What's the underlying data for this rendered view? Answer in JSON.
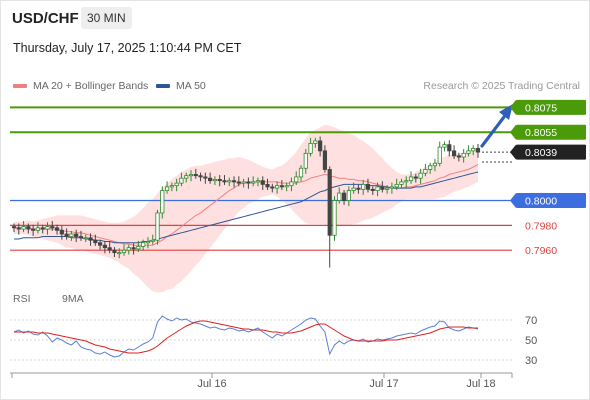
{
  "header": {
    "symbol": "USD/CHF",
    "timeframe": "30 MIN",
    "timestamp": "Thursday, July 17, 2025 1:10:44 PM CET",
    "credit": "Research © 2025 Trading Central"
  },
  "legend": {
    "ma20": {
      "label": "MA 20 + Bollinger Bands",
      "color": "#f08080"
    },
    "ma50": {
      "label": "MA 50",
      "color": "#2f5597"
    }
  },
  "rsi_legend": {
    "rsi": {
      "label": "RSI",
      "color": "#5b7fd6"
    },
    "ma9": {
      "label": "9MA",
      "color": "#e02020"
    }
  },
  "chart_data": [
    {
      "type": "candlestick",
      "title": "USD/CHF",
      "x_ticks": [
        "Jul 16",
        "Jul 17",
        "Jul 18"
      ],
      "ylim": [
        0.794,
        0.8085
      ],
      "levels": [
        {
          "value": 0.8075,
          "label": "0.8075",
          "kind": "resistance",
          "color": "#4a9a0a"
        },
        {
          "value": 0.8055,
          "label": "0.8055",
          "kind": "resistance",
          "color": "#4a9a0a"
        },
        {
          "value": 0.8039,
          "label": "0.8039",
          "kind": "last-price",
          "color": "#222222"
        },
        {
          "value": 0.8,
          "label": "0.8000",
          "kind": "pivot",
          "color": "#3d6ee0"
        },
        {
          "value": 0.798,
          "label": "0.7980",
          "kind": "support",
          "color": "#e04040"
        },
        {
          "value": 0.796,
          "label": "0.7960",
          "kind": "support",
          "color": "#e04040"
        }
      ],
      "close": [
        0.7978,
        0.7977,
        0.7979,
        0.7977,
        0.7976,
        0.7978,
        0.7977,
        0.7979,
        0.7978,
        0.7976,
        0.7973,
        0.7971,
        0.7973,
        0.7971,
        0.797,
        0.797,
        0.7968,
        0.7966,
        0.7964,
        0.7962,
        0.796,
        0.7958,
        0.7958,
        0.796,
        0.7962,
        0.7961,
        0.7963,
        0.7966,
        0.7967,
        0.7968,
        0.799,
        0.8008,
        0.8011,
        0.8012,
        0.8014,
        0.8018,
        0.802,
        0.8021,
        0.802,
        0.8019,
        0.8018,
        0.8016,
        0.8017,
        0.8016,
        0.8015,
        0.8016,
        0.8015,
        0.8014,
        0.8015,
        0.8014,
        0.8015,
        0.8016,
        0.8013,
        0.8011,
        0.801,
        0.8012,
        0.8011,
        0.8012,
        0.8015,
        0.8019,
        0.8026,
        0.8038,
        0.8046,
        0.8048,
        0.804,
        0.8025,
        0.7972,
        0.8,
        0.8006,
        0.8,
        0.8008,
        0.801,
        0.8009,
        0.8013,
        0.8009,
        0.8008,
        0.8011,
        0.8009,
        0.801,
        0.8011,
        0.8013,
        0.8015,
        0.8016,
        0.8019,
        0.8018,
        0.8022,
        0.8025,
        0.8028,
        0.803,
        0.8043,
        0.8045,
        0.804,
        0.8036,
        0.8035,
        0.8038,
        0.804,
        0.8042,
        0.8039
      ],
      "ma20": [
        0.7978,
        0.7978,
        0.7978,
        0.7978,
        0.7977,
        0.7977,
        0.7977,
        0.7977,
        0.7977,
        0.7977,
        0.7976,
        0.7975,
        0.7975,
        0.7974,
        0.7974,
        0.7973,
        0.7972,
        0.7971,
        0.797,
        0.7969,
        0.7968,
        0.7967,
        0.7966,
        0.7965,
        0.7965,
        0.7964,
        0.7964,
        0.7964,
        0.7964,
        0.7964,
        0.7966,
        0.7968,
        0.7971,
        0.7973,
        0.7976,
        0.7979,
        0.7982,
        0.7985,
        0.7988,
        0.799,
        0.7993,
        0.7996,
        0.7999,
        0.8002,
        0.8005,
        0.8008,
        0.801,
        0.8013,
        0.8014,
        0.8015,
        0.8015,
        0.8015,
        0.8015,
        0.8015,
        0.8015,
        0.8015,
        0.8014,
        0.8014,
        0.8014,
        0.8014,
        0.8015,
        0.8016,
        0.8018,
        0.8019,
        0.802,
        0.8021,
        0.802,
        0.8019,
        0.8018,
        0.8018,
        0.8017,
        0.8017,
        0.8016,
        0.8016,
        0.8015,
        0.8014,
        0.8013,
        0.8012,
        0.8011,
        0.801,
        0.801,
        0.801,
        0.8011,
        0.8011,
        0.8012,
        0.8013,
        0.8014,
        0.8015,
        0.8016,
        0.8018,
        0.8019,
        0.8021,
        0.8022,
        0.8023,
        0.8024,
        0.8025,
        0.8027,
        0.8029
      ],
      "bb_width": [
        0.0005,
        0.0005,
        0.0005,
        0.0006,
        0.0006,
        0.0007,
        0.0008,
        0.0009,
        0.001,
        0.0011,
        0.0012,
        0.0013,
        0.0013,
        0.0014,
        0.0014,
        0.0014,
        0.0014,
        0.0014,
        0.0014,
        0.0014,
        0.0014,
        0.0015,
        0.0016,
        0.0018,
        0.002,
        0.0023,
        0.0026,
        0.003,
        0.0034,
        0.0037,
        0.004,
        0.0042,
        0.0043,
        0.0044,
        0.0044,
        0.0044,
        0.0043,
        0.0042,
        0.004,
        0.0038,
        0.0036,
        0.0034,
        0.0032,
        0.003,
        0.0028,
        0.0026,
        0.0024,
        0.0022,
        0.002,
        0.0018,
        0.0016,
        0.0014,
        0.0012,
        0.0011,
        0.001,
        0.0012,
        0.0014,
        0.0017,
        0.0021,
        0.0025,
        0.003,
        0.0034,
        0.0037,
        0.0038,
        0.0039,
        0.004,
        0.004,
        0.004,
        0.0039,
        0.0038,
        0.0037,
        0.0036,
        0.0034,
        0.0032,
        0.003,
        0.0028,
        0.0025,
        0.0022,
        0.0019,
        0.0016,
        0.0013,
        0.0011,
        0.001,
        0.001,
        0.0011,
        0.0012,
        0.0013,
        0.0014,
        0.0015,
        0.0016,
        0.0016,
        0.0016,
        0.0015,
        0.0015,
        0.0014,
        0.0014,
        0.0014,
        0.0014
      ],
      "ma50": [
        0.7969,
        0.7969,
        0.797,
        0.797,
        0.797,
        0.797,
        0.7971,
        0.7971,
        0.7971,
        0.7971,
        0.7971,
        0.7971,
        0.797,
        0.797,
        0.797,
        0.7969,
        0.7969,
        0.7968,
        0.7968,
        0.7967,
        0.7967,
        0.7966,
        0.7966,
        0.7966,
        0.7966,
        0.7966,
        0.7966,
        0.7967,
        0.7967,
        0.7968,
        0.7969,
        0.797,
        0.7971,
        0.7972,
        0.7973,
        0.7974,
        0.7975,
        0.7976,
        0.7977,
        0.7978,
        0.7979,
        0.798,
        0.7981,
        0.7982,
        0.7983,
        0.7984,
        0.7985,
        0.7986,
        0.7987,
        0.7988,
        0.7989,
        0.799,
        0.7991,
        0.7992,
        0.7993,
        0.7994,
        0.7995,
        0.7996,
        0.7997,
        0.7998,
        0.7999,
        0.8001,
        0.8003,
        0.8005,
        0.8007,
        0.8008,
        0.801,
        0.8011,
        0.8012,
        0.8013,
        0.8013,
        0.8013,
        0.8013,
        0.8013,
        0.8012,
        0.8012,
        0.8012,
        0.8011,
        0.8011,
        0.801,
        0.801,
        0.801,
        0.801,
        0.801,
        0.8011,
        0.8011,
        0.8012,
        0.8013,
        0.8014,
        0.8015,
        0.8016,
        0.8017,
        0.8018,
        0.8019,
        0.802,
        0.8021,
        0.8022,
        0.8023
      ]
    },
    {
      "type": "line",
      "title": "RSI",
      "y_ticks": [
        "70",
        "50",
        "30"
      ],
      "ylim": [
        25,
        80
      ],
      "series": [
        {
          "name": "RSI",
          "color": "#5b7fd6",
          "values": [
            58,
            60,
            57,
            59,
            56,
            55,
            58,
            54,
            48,
            52,
            50,
            47,
            45,
            49,
            43,
            41,
            40,
            37,
            36,
            38,
            35,
            33,
            34,
            38,
            41,
            40,
            43,
            46,
            48,
            52,
            68,
            74,
            71,
            69,
            72,
            70,
            71,
            68,
            67,
            66,
            64,
            62,
            63,
            61,
            60,
            62,
            61,
            59,
            60,
            58,
            60,
            62,
            58,
            55,
            52,
            56,
            54,
            57,
            60,
            63,
            66,
            70,
            72,
            71,
            64,
            58,
            36,
            45,
            49,
            46,
            49,
            50,
            49,
            51,
            48,
            49,
            51,
            50,
            51,
            52,
            54,
            55,
            56,
            57,
            56,
            59,
            61,
            63,
            64,
            69,
            68,
            62,
            60,
            59,
            61,
            63,
            62,
            61
          ]
        },
        {
          "name": "9MA",
          "color": "#e02020",
          "values": [
            58,
            58,
            58,
            58,
            58,
            57,
            57,
            57,
            56,
            55,
            54,
            53,
            52,
            51,
            50,
            49,
            47,
            45,
            44,
            43,
            41,
            40,
            39,
            38,
            37,
            37,
            37,
            38,
            39,
            41,
            44,
            48,
            52,
            55,
            58,
            61,
            64,
            66,
            68,
            69,
            69,
            68,
            67,
            66,
            65,
            64,
            63,
            62,
            61,
            61,
            60,
            60,
            60,
            59,
            58,
            58,
            57,
            57,
            57,
            58,
            59,
            61,
            63,
            65,
            66,
            66,
            63,
            60,
            57,
            54,
            52,
            50,
            49,
            49,
            49,
            49,
            49,
            49,
            50,
            50,
            50,
            51,
            52,
            53,
            54,
            55,
            56,
            57,
            59,
            61,
            62,
            63,
            63,
            63,
            63,
            62,
            62,
            62
          ]
        }
      ]
    }
  ]
}
